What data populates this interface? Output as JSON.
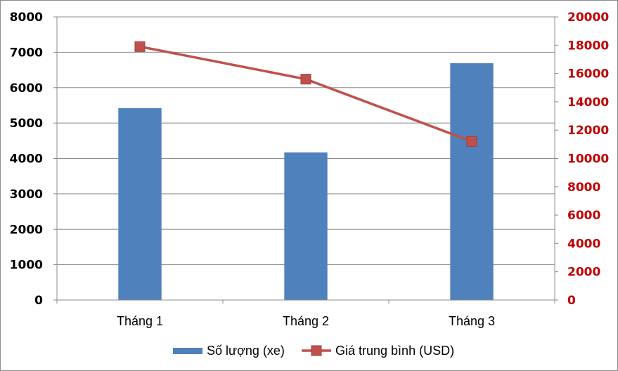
{
  "chart_data": {
    "type": "bar",
    "categories": [
      "Tháng 1",
      "Tháng 2",
      "Tháng 3"
    ],
    "series": [
      {
        "name": "Số lượng (xe)",
        "type": "bar",
        "axis": "left",
        "color": "#4f81bd",
        "values": [
          5420,
          4170,
          6690
        ]
      },
      {
        "name": "Giá trung bình (USD)",
        "type": "line",
        "axis": "right",
        "color": "#c0504d",
        "values": [
          17900,
          15600,
          11200
        ]
      }
    ],
    "y_left": {
      "min": 0,
      "max": 8000,
      "step": 1000,
      "tick_color": "#000000"
    },
    "y_right": {
      "min": 0,
      "max": 20000,
      "step": 2000,
      "tick_color": "#c00000"
    },
    "grid": true,
    "legend_position": "bottom"
  }
}
